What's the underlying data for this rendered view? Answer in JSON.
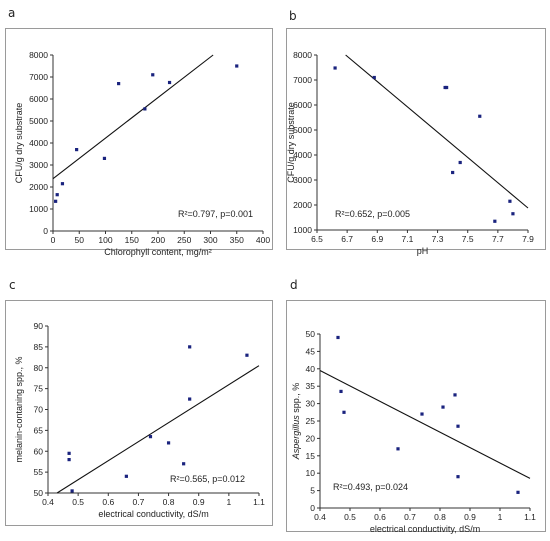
{
  "chart_data": [
    {
      "panel": "a",
      "type": "scatter",
      "xlabel": "Chlorophyll content, mg/m²",
      "ylabel": "CFU/g dry substrate",
      "xlim": [
        0,
        400
      ],
      "ylim": [
        0,
        8000
      ],
      "xticks": [
        0,
        50,
        100,
        150,
        200,
        250,
        300,
        350,
        400
      ],
      "yticks": [
        0,
        1000,
        2000,
        3000,
        4000,
        5000,
        6000,
        7000,
        8000
      ],
      "annotation": "R²=0.797, p=0.001",
      "trendline": {
        "x": [
          0,
          305
        ],
        "y": [
          2380,
          8000
        ]
      },
      "points": [
        {
          "x": 5,
          "y": 1350
        },
        {
          "x": 8,
          "y": 1650
        },
        {
          "x": 18,
          "y": 2150
        },
        {
          "x": 45,
          "y": 3700
        },
        {
          "x": 98,
          "y": 3300
        },
        {
          "x": 125,
          "y": 6700
        },
        {
          "x": 175,
          "y": 5550
        },
        {
          "x": 190,
          "y": 7100
        },
        {
          "x": 222,
          "y": 6750
        },
        {
          "x": 350,
          "y": 7500
        }
      ],
      "grid": false
    },
    {
      "panel": "b",
      "type": "scatter",
      "xlabel": "pH",
      "ylabel": "CFU/g dry substrate",
      "xlim": [
        6.5,
        7.9
      ],
      "ylim": [
        1000,
        8000
      ],
      "xticks": [
        6.5,
        6.7,
        6.9,
        7.1,
        7.3,
        7.5,
        7.7,
        7.9
      ],
      "yticks": [
        1000,
        2000,
        3000,
        4000,
        5000,
        6000,
        7000,
        8000
      ],
      "annotation": "R²=0.652, p=0.005",
      "trendline": {
        "x": [
          6.69,
          7.9
        ],
        "y": [
          8000,
          1880
        ]
      },
      "points": [
        {
          "x": 6.62,
          "y": 7480
        },
        {
          "x": 6.88,
          "y": 7100
        },
        {
          "x": 7.35,
          "y": 6700
        },
        {
          "x": 7.36,
          "y": 6700
        },
        {
          "x": 7.4,
          "y": 3300
        },
        {
          "x": 7.45,
          "y": 3700
        },
        {
          "x": 7.58,
          "y": 5550
        },
        {
          "x": 7.68,
          "y": 1350
        },
        {
          "x": 7.78,
          "y": 2150
        },
        {
          "x": 7.8,
          "y": 1650
        }
      ],
      "grid": false
    },
    {
      "panel": "c",
      "type": "scatter",
      "xlabel": "electrical conductivity, dS/m",
      "ylabel": "melanin-contaning spp., %",
      "xlim": [
        0.4,
        1.1
      ],
      "ylim": [
        50,
        90
      ],
      "xticks": [
        0.4,
        0.5,
        0.6,
        0.7,
        0.8,
        0.9,
        1,
        1.1
      ],
      "yticks": [
        50,
        55,
        60,
        65,
        70,
        75,
        80,
        85,
        90
      ],
      "annotation": "R²=0.565, p=0.012",
      "trendline": {
        "x": [
          0.43,
          1.1
        ],
        "y": [
          50,
          80.5
        ]
      },
      "points": [
        {
          "x": 0.47,
          "y": 59.5
        },
        {
          "x": 0.47,
          "y": 58
        },
        {
          "x": 0.48,
          "y": 50.5
        },
        {
          "x": 0.66,
          "y": 54
        },
        {
          "x": 0.74,
          "y": 63.5
        },
        {
          "x": 0.8,
          "y": 62
        },
        {
          "x": 0.85,
          "y": 57
        },
        {
          "x": 0.87,
          "y": 85
        },
        {
          "x": 0.87,
          "y": 72.5
        },
        {
          "x": 1.06,
          "y": 83
        }
      ],
      "grid": false
    },
    {
      "panel": "d",
      "type": "scatter",
      "xlabel": "electrical conductivity, dS/m",
      "ylabel_prefix": "Aspergillus",
      "ylabel_suffix": " spp., %",
      "xlim": [
        0.4,
        1.1
      ],
      "ylim": [
        0,
        50
      ],
      "xticks": [
        0.4,
        0.5,
        0.6,
        0.7,
        0.8,
        0.9,
        1,
        1.1
      ],
      "yticks": [
        0,
        5,
        10,
        15,
        20,
        25,
        30,
        35,
        40,
        45,
        50
      ],
      "annotation": "R²=0.493, p=0.024",
      "trendline": {
        "x": [
          0.4,
          1.1
        ],
        "y": [
          39.5,
          8.5
        ]
      },
      "points": [
        {
          "x": 0.46,
          "y": 49
        },
        {
          "x": 0.47,
          "y": 33.5
        },
        {
          "x": 0.48,
          "y": 27.5
        },
        {
          "x": 0.66,
          "y": 17
        },
        {
          "x": 0.74,
          "y": 27
        },
        {
          "x": 0.81,
          "y": 29
        },
        {
          "x": 0.85,
          "y": 32.5
        },
        {
          "x": 0.86,
          "y": 23.5
        },
        {
          "x": 0.86,
          "y": 9
        },
        {
          "x": 1.06,
          "y": 4.5
        }
      ],
      "grid": false
    }
  ],
  "colors": {
    "point": "#1a237e",
    "line": "#111111",
    "axis": "#333333",
    "frame": "#9a9a9a"
  }
}
